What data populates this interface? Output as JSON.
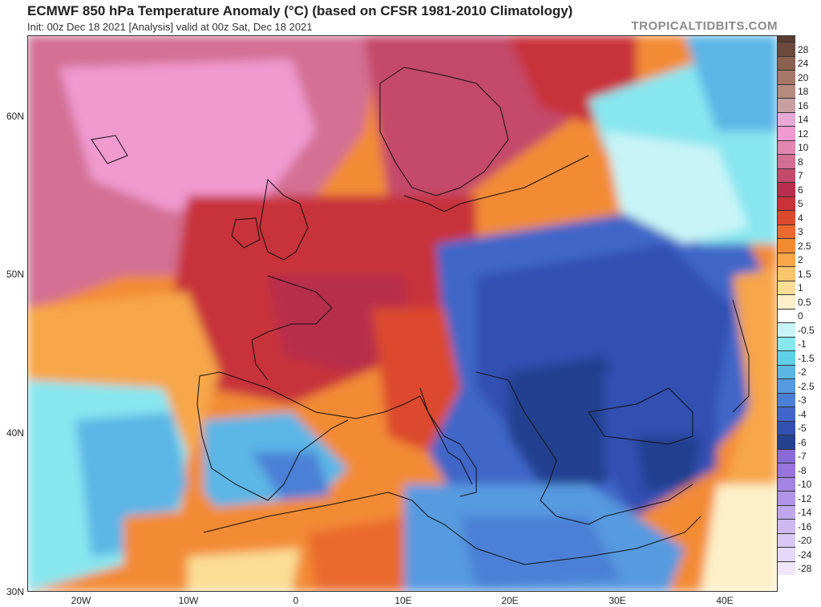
{
  "header": {
    "title": "ECMWF 850 hPa Temperature Anomaly (°C) (based on CFSR 1981-2010 Climatology)",
    "subtitle": "Init: 00z Dec 18 2021   [Analysis]   valid at 00z Sat, Dec 18 2021",
    "credit": "TROPICALTIDBITS.COM"
  },
  "map": {
    "lat_ticks": [
      "60N",
      "50N",
      "40N",
      "30N"
    ],
    "lon_ticks": [
      "20W",
      "10W",
      "0",
      "10E",
      "20E",
      "30E",
      "40E"
    ],
    "lat_range": [
      30,
      65
    ],
    "lon_range": [
      -25,
      45
    ]
  },
  "legend": {
    "labels": [
      "28",
      "24",
      "20",
      "18",
      "16",
      "14",
      "12",
      "10",
      "8",
      "7",
      "6",
      "5",
      "4",
      "3",
      "2.5",
      "2",
      "1.5",
      "1",
      "0.5",
      "0",
      "-0.5",
      "-1",
      "-1.5",
      "-2",
      "-2.5",
      "-3",
      "-4",
      "-5",
      "-6",
      "-7",
      "-8",
      "-10",
      "-12",
      "-14",
      "-16",
      "-20",
      "-24",
      "-28"
    ],
    "colors": [
      "#6b4a3d",
      "#8c6050",
      "#a6776a",
      "#b78a80",
      "#c8a0a0",
      "#e8a8d8",
      "#f09ad0",
      "#e386b0",
      "#d36f93",
      "#c44a6b",
      "#b72f4c",
      "#c8333a",
      "#dc4a2e",
      "#ea6a2e",
      "#f38b35",
      "#f7a64a",
      "#f9c46c",
      "#fbdd95",
      "#fdf0c8",
      "#ffffff",
      "#c8f4f7",
      "#88e6ef",
      "#5fd0e8",
      "#5bb6e6",
      "#569ae0",
      "#4b80d6",
      "#3f66c8",
      "#3050b2",
      "#24418f",
      "#8a6ad6",
      "#9a74dc",
      "#a484e2",
      "#b194e8",
      "#c0a6ec",
      "#cdb8f0",
      "#dac8f4",
      "#e6d8f8",
      "#f0e6fa"
    ]
  }
}
